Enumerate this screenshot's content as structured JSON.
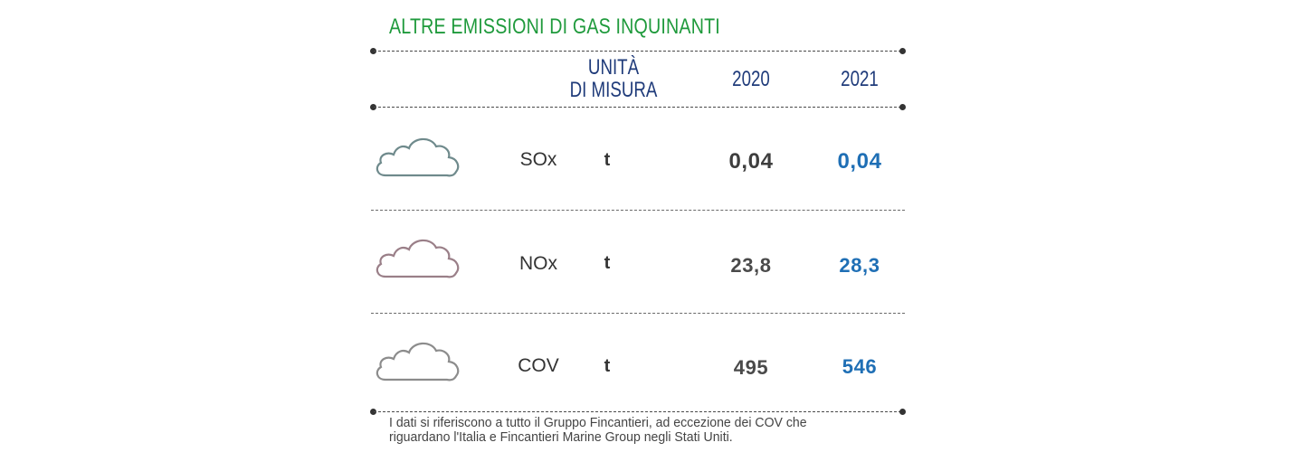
{
  "title": "ALTRE EMISSIONI DI GAS INQUINANTI",
  "header": {
    "unit_line1": "UNITÀ",
    "unit_line2": "DI MISURA",
    "year1": "2020",
    "year2": "2021"
  },
  "rows": [
    {
      "gas": "SOx",
      "unit": "t",
      "v2020": "0,04",
      "v2021": "0,04",
      "icon": "cloud-icon",
      "cloud_color": "#6f8a8c"
    },
    {
      "gas": "NOx",
      "unit": "t",
      "v2020": "23,8",
      "v2021": "28,3",
      "icon": "cloud-icon",
      "cloud_color": "#9a7f88"
    },
    {
      "gas": "COV",
      "unit": "t",
      "v2020": "495",
      "v2021": "546",
      "icon": "cloud-icon",
      "cloud_color": "#8c8c8c"
    }
  ],
  "note": "I dati si riferiscono a tutto il Gruppo Fincantieri, ad eccezione dei COV che riguardano l'Italia e Fincantieri Marine Group negli Stati Uniti.",
  "colors": {
    "title": "#1f9a3c",
    "header": "#1f3b7a",
    "value_2021": "#1f6fb5",
    "value_2020": "#4a4a4a"
  }
}
